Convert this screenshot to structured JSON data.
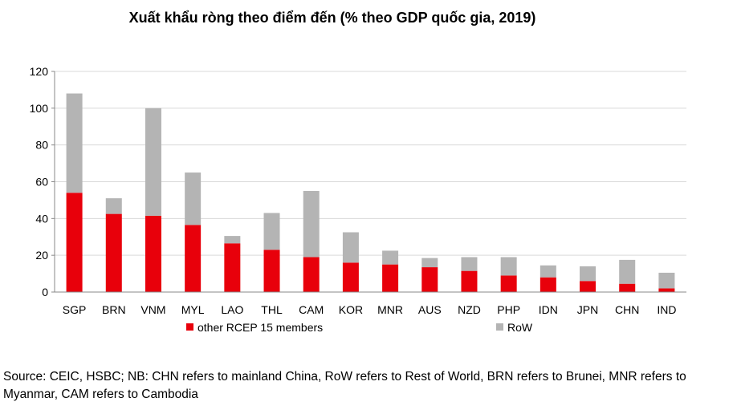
{
  "chart_data": {
    "type": "bar",
    "stacked": true,
    "title": "Xuất khẩu ròng theo điểm đến (% theo GDP quốc gia, 2019)",
    "categories": [
      "SGP",
      "BRN",
      "VNM",
      "MYL",
      "LAO",
      "THL",
      "CAM",
      "KOR",
      "MNR",
      "AUS",
      "NZD",
      "PHP",
      "IDN",
      "JPN",
      "CHN",
      "IND"
    ],
    "series": [
      {
        "name": "other RCEP 15 members",
        "color": "#e8000b",
        "values": [
          54,
          42.5,
          41.5,
          36.5,
          26.5,
          23,
          19,
          16,
          15,
          13.5,
          11.5,
          9,
          8,
          6,
          4.5,
          2
        ]
      },
      {
        "name": "RoW",
        "color": "#b4b4b4",
        "values": [
          54,
          8.5,
          58.5,
          28.5,
          4,
          20,
          36,
          16.5,
          7.5,
          5,
          7.5,
          10,
          6.5,
          8,
          13,
          8.5
        ]
      }
    ],
    "ylim": [
      0,
      120
    ],
    "yticks": [
      "0",
      "20",
      "40",
      "60",
      "80",
      "100",
      "120"
    ],
    "grid": true,
    "legend_position": "bottom"
  },
  "source_note": "Source: CEIC, HSBC; NB: CHN refers to mainland China, RoW refers to Rest of World, BRN refers to Brunei, MNR refers to Myanmar, CAM refers to Cambodia"
}
